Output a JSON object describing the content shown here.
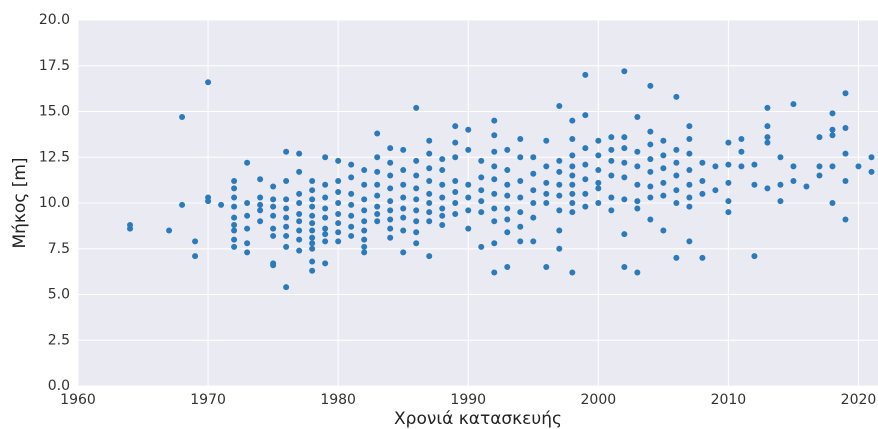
{
  "chart_data": {
    "type": "scatter",
    "xlabel": "Χρονιά κατασκευής",
    "ylabel": "Μήκος    [m]",
    "xlim": [
      1960,
      2021.5
    ],
    "ylim": [
      0,
      20
    ],
    "xticks": [
      1960,
      1970,
      1980,
      1990,
      2000,
      2010,
      2020
    ],
    "yticks": [
      {
        "value": 0,
        "label": "0.0"
      },
      {
        "value": 2.5,
        "label": "2.5"
      },
      {
        "value": 5,
        "label": "5.0"
      },
      {
        "value": 7.5,
        "label": "7.5"
      },
      {
        "value": 10,
        "label": "10.0"
      },
      {
        "value": 12.5,
        "label": "12.5"
      },
      {
        "value": 15,
        "label": "15.0"
      },
      {
        "value": 17.5,
        "label": "17.5"
      },
      {
        "value": 20,
        "label": "20.0"
      }
    ],
    "grid": true,
    "color": "#2b7bba",
    "x": [
      1964,
      1964,
      1967,
      1968,
      1968,
      1969,
      1969,
      1970,
      1970,
      1970,
      1971,
      1972,
      1972,
      1972,
      1972,
      1972,
      1972,
      1972,
      1972,
      1972,
      1973,
      1973,
      1973,
      1973,
      1973,
      1973,
      1974,
      1974,
      1974,
      1974,
      1974,
      1975,
      1975,
      1975,
      1975,
      1975,
      1975,
      1975,
      1975,
      1976,
      1976,
      1976,
      1976,
      1976,
      1976,
      1976,
      1976,
      1976,
      1977,
      1977,
      1977,
      1977,
      1977,
      1977,
      1977,
      1977,
      1977,
      1978,
      1978,
      1978,
      1978,
      1978,
      1978,
      1978,
      1978,
      1978,
      1978,
      1978,
      1978,
      1979,
      1979,
      1979,
      1979,
      1979,
      1979,
      1979,
      1979,
      1979,
      1980,
      1980,
      1980,
      1980,
      1980,
      1980,
      1980,
      1980,
      1981,
      1981,
      1981,
      1981,
      1981,
      1981,
      1981,
      1982,
      1982,
      1982,
      1982,
      1982,
      1982,
      1982,
      1982,
      1982,
      1983,
      1983,
      1983,
      1983,
      1983,
      1983,
      1983,
      1983,
      1984,
      1984,
      1984,
      1984,
      1984,
      1984,
      1984,
      1984,
      1984,
      1985,
      1985,
      1985,
      1985,
      1985,
      1985,
      1985,
      1985,
      1986,
      1986,
      1986,
      1986,
      1986,
      1986,
      1986,
      1986,
      1986,
      1987,
      1987,
      1987,
      1987,
      1987,
      1987,
      1987,
      1987,
      1987,
      1988,
      1988,
      1988,
      1988,
      1988,
      1988,
      1988,
      1989,
      1989,
      1989,
      1989,
      1989,
      1989,
      1989,
      1990,
      1990,
      1990,
      1990,
      1990,
      1990,
      1991,
      1991,
      1991,
      1991,
      1991,
      1991,
      1992,
      1992,
      1992,
      1992,
      1992,
      1992,
      1992,
      1992,
      1992,
      1992,
      1993,
      1993,
      1993,
      1993,
      1993,
      1993,
      1993,
      1993,
      1994,
      1994,
      1994,
      1994,
      1994,
      1994,
      1994,
      1995,
      1995,
      1995,
      1995,
      1995,
      1995,
      1996,
      1996,
      1996,
      1996,
      1996,
      1996,
      1997,
      1997,
      1997,
      1997,
      1997,
      1997,
      1997,
      1997,
      1998,
      1998,
      1998,
      1998,
      1998,
      1998,
      1998,
      1998,
      1998,
      1998,
      1999,
      1999,
      1999,
      1999,
      1999,
      1999,
      1999,
      2000,
      2000,
      2000,
      2000,
      2000,
      2000,
      2001,
      2001,
      2001,
      2001,
      2001,
      2001,
      2002,
      2002,
      2002,
      2002,
      2002,
      2002,
      2002,
      2002,
      2003,
      2003,
      2003,
      2003,
      2003,
      2003,
      2003,
      2004,
      2004,
      2004,
      2004,
      2004,
      2004,
      2004,
      2004,
      2005,
      2005,
      2005,
      2005,
      2005,
      2005,
      2006,
      2006,
      2006,
      2006,
      2006,
      2006,
      2006,
      2007,
      2007,
      2007,
      2007,
      2007,
      2007,
      2007,
      2007,
      2008,
      2008,
      2008,
      2008,
      2009,
      2009,
      2010,
      2010,
      2010,
      2010,
      2010,
      2011,
      2011,
      2011,
      2012,
      2012,
      2012,
      2013,
      2013,
      2013,
      2013,
      2013,
      2014,
      2014,
      2014,
      2015,
      2015,
      2015,
      2016,
      2017,
      2017,
      2017,
      2018,
      2018,
      2018,
      2018,
      2018,
      2019,
      2019,
      2019,
      2019,
      2019,
      2020,
      2021,
      2021
    ],
    "values": [
      8.6,
      8.8,
      8.5,
      14.7,
      9.9,
      7.9,
      7.1,
      16.6,
      10.3,
      10.1,
      9.9,
      11.2,
      10.8,
      10.3,
      9.8,
      9.2,
      8.8,
      8.5,
      8.0,
      7.6,
      12.2,
      10.0,
      9.3,
      8.6,
      7.8,
      7.3,
      11.3,
      10.3,
      9.9,
      9.6,
      9.0,
      10.9,
      10.2,
      9.8,
      9.3,
      8.6,
      8.2,
      6.7,
      6.6,
      12.8,
      11.2,
      10.2,
      9.7,
      9.2,
      8.7,
      8.2,
      7.6,
      5.4,
      12.7,
      11.7,
      10.5,
      10.0,
      9.4,
      9.0,
      8.5,
      8.0,
      7.4,
      11.2,
      10.7,
      10.2,
      9.8,
      9.3,
      8.9,
      8.5,
      8.1,
      7.8,
      7.5,
      6.8,
      6.3,
      12.5,
      11.0,
      10.3,
      9.7,
      9.2,
      8.6,
      8.3,
      7.9,
      6.7,
      12.3,
      11.2,
      10.6,
      10.0,
      9.4,
      8.9,
      8.4,
      7.9,
      12.1,
      11.4,
      10.5,
      9.9,
      9.3,
      8.7,
      8.2,
      11.8,
      11.0,
      10.2,
      9.6,
      9.0,
      8.5,
      8.0,
      7.6,
      7.3,
      13.8,
      12.5,
      11.7,
      11.0,
      10.4,
      9.8,
      9.4,
      9.0,
      13.0,
      12.2,
      11.5,
      10.8,
      10.1,
      9.6,
      9.1,
      8.6,
      8.1,
      12.9,
      11.8,
      11.0,
      10.3,
      9.7,
      9.2,
      8.5,
      7.3,
      15.2,
      12.3,
      11.5,
      10.8,
      10.2,
      9.6,
      9.0,
      8.4,
      7.8,
      13.4,
      12.7,
      11.9,
      11.2,
      10.5,
      10.0,
      9.5,
      9.0,
      7.1,
      12.4,
      11.8,
      11.0,
      10.3,
      9.7,
      9.3,
      8.8,
      14.2,
      13.3,
      12.5,
      11.2,
      10.6,
      10.0,
      9.4,
      14.0,
      12.9,
      11.0,
      10.3,
      9.6,
      8.6,
      12.3,
      11.4,
      10.7,
      10.1,
      9.5,
      7.6,
      14.5,
      13.7,
      12.8,
      12.0,
      11.3,
      10.5,
      9.7,
      9.0,
      7.8,
      6.2,
      12.9,
      11.8,
      11.0,
      10.4,
      9.7,
      9.1,
      8.4,
      6.5,
      13.5,
      12.5,
      11.2,
      10.3,
      9.5,
      8.7,
      7.9,
      12.5,
      11.6,
      10.7,
      10.0,
      9.2,
      7.9,
      13.4,
      12.0,
      11.1,
      10.5,
      10.0,
      6.5,
      15.3,
      12.3,
      11.7,
      11.0,
      10.4,
      9.6,
      8.5,
      7.5,
      14.5,
      13.5,
      12.6,
      12.0,
      11.5,
      11.0,
      10.5,
      10.0,
      9.5,
      6.2,
      17.0,
      14.8,
      13.0,
      12.1,
      11.3,
      10.5,
      9.8,
      13.4,
      12.6,
      11.8,
      11.1,
      10.8,
      10.0,
      13.6,
      12.9,
      12.3,
      11.5,
      10.3,
      9.6,
      17.2,
      13.6,
      13.0,
      12.2,
      11.4,
      10.2,
      8.3,
      6.5,
      14.7,
      12.8,
      12.0,
      11.0,
      10.1,
      9.7,
      6.2,
      16.4,
      13.9,
      13.2,
      12.4,
      11.7,
      10.9,
      10.3,
      9.1,
      13.4,
      12.6,
      11.9,
      11.1,
      10.4,
      8.5,
      15.8,
      12.9,
      12.2,
      11.5,
      10.7,
      10.0,
      7.0,
      14.2,
      13.5,
      12.7,
      11.8,
      11.0,
      10.3,
      9.8,
      7.9,
      12.2,
      11.2,
      10.5,
      7.0,
      12.0,
      10.7,
      13.3,
      12.1,
      11.1,
      10.1,
      9.5,
      13.5,
      12.8,
      12.0,
      12.1,
      11.0,
      7.1,
      15.2,
      14.2,
      13.6,
      13.3,
      10.8,
      11.0,
      10.1,
      12.5,
      15.4,
      12.0,
      11.2,
      10.9,
      13.6,
      12.0,
      11.5,
      14.9,
      14.0,
      13.7,
      12.0,
      10.0,
      16.0,
      14.1,
      12.7,
      11.2,
      9.1,
      12.0,
      12.5,
      11.7
    ]
  }
}
